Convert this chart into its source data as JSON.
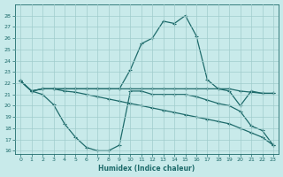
{
  "xlabel": "Humidex (Indice chaleur)",
  "xlim": [
    -0.5,
    23.5
  ],
  "ylim": [
    15.7,
    29.0
  ],
  "yticks": [
    16,
    17,
    18,
    19,
    20,
    21,
    22,
    23,
    24,
    25,
    26,
    27,
    28
  ],
  "xticks": [
    0,
    1,
    2,
    3,
    4,
    5,
    6,
    7,
    8,
    9,
    10,
    11,
    12,
    13,
    14,
    15,
    16,
    17,
    18,
    19,
    20,
    21,
    22,
    23
  ],
  "bg_color": "#c8eaea",
  "line_color": "#1e6b6b",
  "grid_color": "#a0cccc",
  "line_peak_x": [
    0,
    1,
    2,
    3,
    4,
    5,
    6,
    7,
    8,
    9,
    10,
    11,
    12,
    13,
    14,
    15,
    16,
    17,
    18,
    19,
    20,
    21,
    22,
    23
  ],
  "line_peak_y": [
    22.2,
    21.3,
    21.5,
    21.5,
    21.5,
    21.5,
    21.5,
    21.5,
    21.5,
    21.5,
    23.2,
    25.5,
    26.0,
    27.5,
    27.3,
    28.0,
    26.2,
    22.3,
    21.5,
    21.3,
    20.0,
    21.3,
    21.1,
    21.1
  ],
  "line_flat_x": [
    0,
    1,
    2,
    3,
    4,
    5,
    6,
    7,
    8,
    9,
    10,
    11,
    12,
    13,
    14,
    15,
    16,
    17,
    18,
    19,
    20,
    21,
    22,
    23
  ],
  "line_flat_y": [
    22.2,
    21.3,
    21.5,
    21.5,
    21.5,
    21.5,
    21.5,
    21.5,
    21.5,
    21.5,
    21.5,
    21.5,
    21.5,
    21.5,
    21.5,
    21.5,
    21.5,
    21.5,
    21.5,
    21.5,
    21.3,
    21.2,
    21.1,
    21.1
  ],
  "line_valley_x": [
    0,
    1,
    2,
    3,
    4,
    5,
    6,
    7,
    8,
    9,
    10,
    11,
    12,
    13,
    14,
    15,
    16,
    17,
    18,
    19,
    20,
    21,
    22,
    23
  ],
  "line_valley_y": [
    22.2,
    21.3,
    21.0,
    20.1,
    18.4,
    17.2,
    16.3,
    16.0,
    16.0,
    16.5,
    21.3,
    21.3,
    21.0,
    21.0,
    21.0,
    21.0,
    20.8,
    20.5,
    20.2,
    20.0,
    19.5,
    18.2,
    17.8,
    16.5
  ],
  "line_diag_x": [
    0,
    1,
    2,
    3,
    4,
    5,
    6,
    7,
    8,
    9,
    10,
    11,
    12,
    13,
    14,
    15,
    16,
    17,
    18,
    19,
    20,
    21,
    22,
    23
  ],
  "line_diag_y": [
    22.2,
    21.3,
    21.5,
    21.5,
    21.3,
    21.2,
    21.0,
    20.8,
    20.6,
    20.4,
    20.2,
    20.0,
    19.8,
    19.6,
    19.4,
    19.2,
    19.0,
    18.8,
    18.6,
    18.4,
    18.0,
    17.6,
    17.2,
    16.5
  ]
}
